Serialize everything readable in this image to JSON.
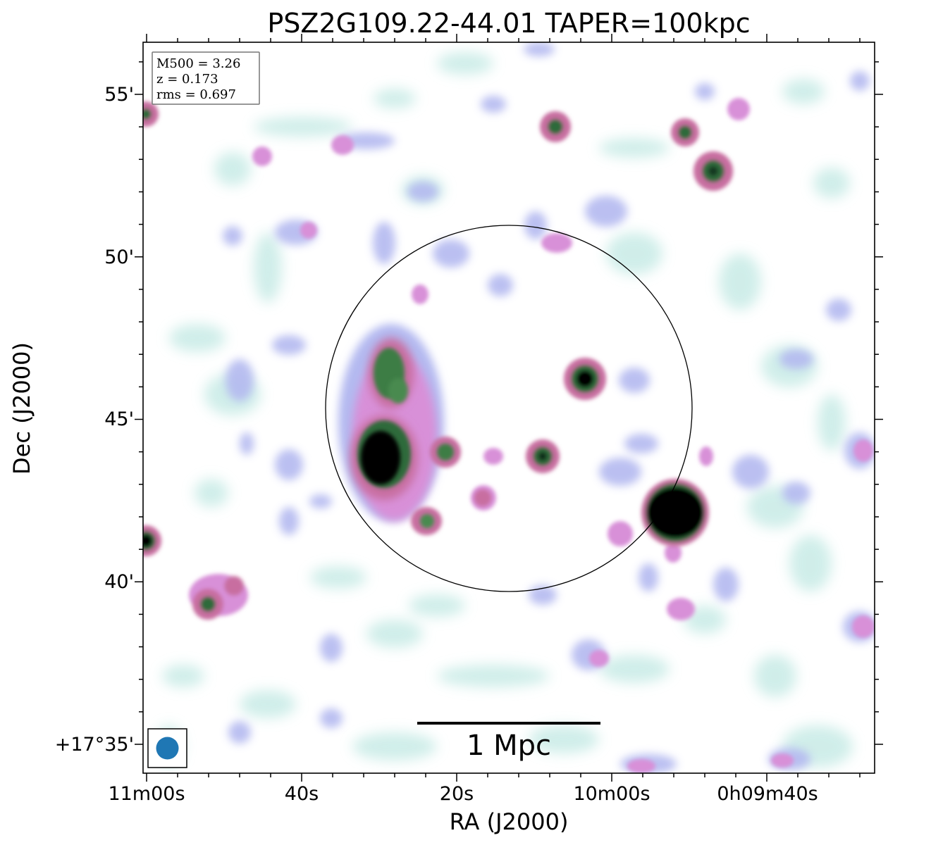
{
  "figure": {
    "title": "PSZ2G109.22-44.01 TAPER=100kpc",
    "xlabel": "RA (J2000)",
    "ylabel": "Dec (J2000)",
    "xticks": [
      "11m00s",
      "40s",
      "20s",
      "10m00s",
      "0h09m40s"
    ],
    "yticks": [
      "55'",
      "50'",
      "45'",
      "40'",
      "+17°35'"
    ],
    "info_box": {
      "m500": "M500 = 3.26",
      "z": "z = 0.173",
      "rms": "rms = 0.697"
    },
    "scalebar_label": "1 Mpc",
    "colors": {
      "beam": "#1f77b4",
      "light": "#c8ebe6",
      "lavender": "#b4b9f0",
      "pink": "#d890d8",
      "magenta": "#c86ea0",
      "green": "#2e6b3a",
      "black": "#000000"
    }
  }
}
